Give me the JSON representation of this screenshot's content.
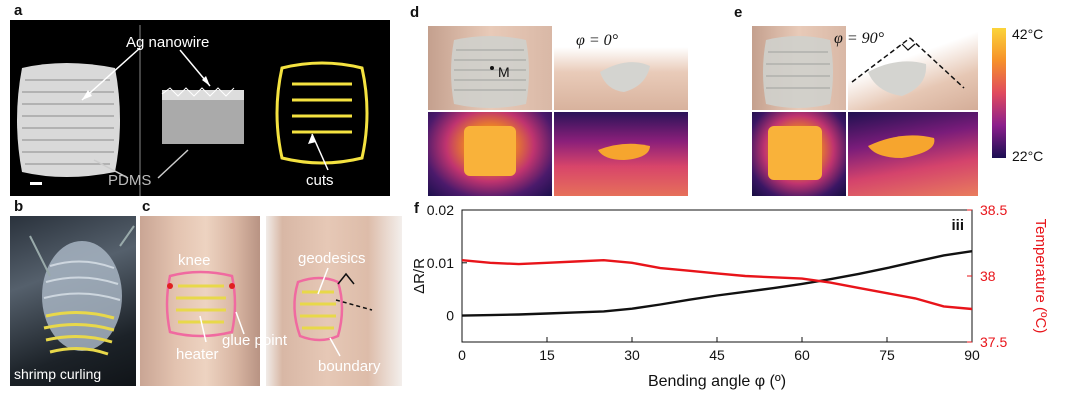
{
  "panels": {
    "a": {
      "label": "a",
      "ag_nanowire": "Ag nanowire",
      "pdms": "PDMS",
      "cuts": "cuts"
    },
    "b": {
      "label": "b",
      "caption": "shrimp curling"
    },
    "c": {
      "label": "c",
      "knee": "knee",
      "heater": "heater",
      "glue_point": "glue point",
      "geodesics": "geodesics",
      "boundary": "boundary"
    },
    "d": {
      "label": "d",
      "angle": "φ = 0°",
      "point_m": "M"
    },
    "e": {
      "label": "e",
      "angle": "φ = 90°"
    },
    "colorbar": {
      "max": "42°C",
      "min": "22°C"
    },
    "f": {
      "label": "f",
      "roman": "iii"
    }
  },
  "chart_data": {
    "type": "line",
    "xlabel": "Bending angle φ (º)",
    "ylabel_left": "ΔR/R",
    "ylabel_right": "Temperature (ºC)",
    "xlim": [
      0,
      90
    ],
    "ylim_left": [
      -0.005,
      0.02
    ],
    "ylim_right": [
      37.5,
      38.5
    ],
    "x_ticks": [
      "0",
      "15",
      "30",
      "45",
      "60",
      "75",
      "90"
    ],
    "y_ticks_left": [
      "0",
      "0.01",
      "0.02"
    ],
    "y_ticks_right": [
      "37.5",
      "38",
      "38.5"
    ],
    "series": [
      {
        "axis": "left",
        "color": "#111111",
        "x": [
          0,
          5,
          10,
          15,
          20,
          25,
          30,
          35,
          40,
          45,
          50,
          55,
          60,
          65,
          70,
          75,
          80,
          85,
          90
        ],
        "y": [
          0.0,
          0.0001,
          0.0002,
          0.0004,
          0.0006,
          0.0008,
          0.0013,
          0.0021,
          0.003,
          0.0038,
          0.0045,
          0.0052,
          0.006,
          0.0069,
          0.0079,
          0.009,
          0.0102,
          0.0114,
          0.0122
        ]
      },
      {
        "axis": "right",
        "color": "#e8141a",
        "x": [
          0,
          5,
          10,
          15,
          20,
          25,
          30,
          35,
          40,
          45,
          50,
          55,
          60,
          65,
          70,
          75,
          80,
          85,
          90
        ],
        "y": [
          38.12,
          38.1,
          38.09,
          38.1,
          38.11,
          38.12,
          38.1,
          38.06,
          38.04,
          38.02,
          38.0,
          37.99,
          37.98,
          37.95,
          37.91,
          37.87,
          37.83,
          37.77,
          37.75
        ]
      }
    ]
  }
}
